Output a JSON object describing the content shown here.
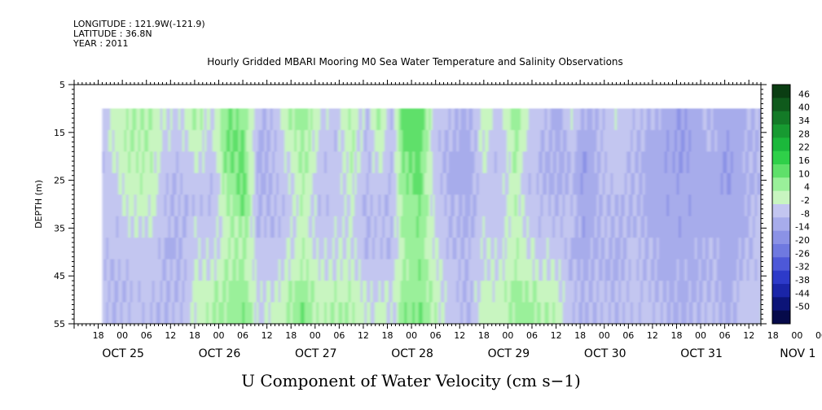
{
  "header": {
    "longitude": "LONGITUDE : 121.9W(-121.9)",
    "latitude": "LATITUDE : 36.8N",
    "year": "YEAR : 2011"
  },
  "chart_data": {
    "type": "heatmap",
    "title": "Hourly Gridded MBARI Mooring M0 Sea Water Temperature and Salinity Observations",
    "xlabel": "U Component of Water Velocity (cm s−1)",
    "ylabel": "DEPTH (m)",
    "ylim": [
      5,
      55
    ],
    "y_inverted": true,
    "yticks": [
      "5",
      "15",
      "25",
      "35",
      "45",
      "55"
    ],
    "x_start": "2011-10-25 12:00",
    "x_end": "2011-11-01 15:00",
    "x_hour_ticks": [
      "18",
      "00",
      "06",
      "12",
      "18",
      "00",
      "06",
      "12",
      "18",
      "00",
      "06",
      "12",
      "18",
      "00",
      "06",
      "12",
      "18",
      "00",
      "06",
      "12",
      "18",
      "00",
      "06",
      "12",
      "18",
      "00",
      "06",
      "12",
      "18",
      "00",
      "06",
      "12"
    ],
    "x_day_labels": [
      "OCT 25",
      "OCT 26",
      "OCT 27",
      "OCT 28",
      "OCT 29",
      "OCT 30",
      "OCT 31",
      "NOV  1"
    ],
    "data_depth_range": [
      10,
      55
    ],
    "data_time_range": [
      "2011-10-25 19:00",
      "2011-11-01 14:00"
    ],
    "colorbar": {
      "levels": [
        "46",
        "40",
        "34",
        "28",
        "22",
        "16",
        "10",
        "4",
        "-2",
        "-8",
        "-14",
        "-20",
        "-26",
        "-32",
        "-38",
        "-44",
        "-50"
      ],
      "colors": [
        "#0a3d12",
        "#0f5a1c",
        "#137a27",
        "#179a31",
        "#1bb83b",
        "#2fd049",
        "#5fe06a",
        "#9af09a",
        "#c8f5c0",
        "#c3c6f0",
        "#a7aceb",
        "#8b92e6",
        "#6f79e0",
        "#4d58d8",
        "#2d3ac9",
        "#1a25a8",
        "#0c1478",
        "#060a4a"
      ]
    },
    "columns": [
      {
        "t": 0,
        "v": [
          -6,
          -6,
          -6,
          -6,
          -6,
          -6,
          -6,
          -6,
          -6,
          -6
        ]
      },
      {
        "t": 8,
        "v": [
          2,
          2,
          0,
          -2,
          -4,
          -6,
          -6,
          -8,
          -8,
          -8
        ]
      },
      {
        "t": 16,
        "v": [
          4,
          4,
          3,
          2,
          0,
          -2,
          -4,
          -6,
          -6,
          -6
        ]
      },
      {
        "t": 24,
        "v": [
          4,
          3,
          2,
          2,
          0,
          -2,
          -4,
          -4,
          -6,
          -6
        ]
      },
      {
        "t": 32,
        "v": [
          -4,
          -4,
          -6,
          -8,
          -8,
          -8,
          -10,
          -8,
          -8,
          -8
        ]
      },
      {
        "t": 40,
        "v": [
          -2,
          -4,
          -6,
          -6,
          -8,
          -8,
          -8,
          -8,
          -8,
          -6
        ]
      },
      {
        "t": 46,
        "v": [
          6,
          4,
          -2,
          -4,
          -6,
          -4,
          -4,
          -2,
          0,
          0
        ]
      },
      {
        "t": 54,
        "v": [
          -4,
          -6,
          -6,
          -8,
          -6,
          -6,
          -4,
          -2,
          2,
          4
        ]
      },
      {
        "t": 62,
        "v": [
          10,
          12,
          10,
          6,
          4,
          2,
          2,
          4,
          6,
          6
        ]
      },
      {
        "t": 70,
        "v": [
          8,
          10,
          12,
          12,
          10,
          6,
          6,
          6,
          8,
          10
        ]
      },
      {
        "t": 78,
        "v": [
          -8,
          -10,
          -10,
          -10,
          -8,
          -8,
          -6,
          -6,
          -4,
          -4
        ]
      },
      {
        "t": 86,
        "v": [
          -6,
          -8,
          -8,
          -8,
          -8,
          -8,
          -6,
          -4,
          -2,
          0
        ]
      },
      {
        "t": 94,
        "v": [
          4,
          2,
          0,
          -2,
          -4,
          -4,
          -2,
          0,
          4,
          6
        ]
      },
      {
        "t": 100,
        "v": [
          8,
          6,
          6,
          4,
          4,
          2,
          2,
          4,
          8,
          10
        ]
      },
      {
        "t": 108,
        "v": [
          -2,
          -4,
          -6,
          -6,
          -6,
          -6,
          -4,
          -2,
          0,
          2
        ]
      },
      {
        "t": 116,
        "v": [
          -6,
          -6,
          -6,
          -6,
          -6,
          -4,
          -4,
          -2,
          2,
          4
        ]
      },
      {
        "t": 124,
        "v": [
          4,
          4,
          2,
          0,
          -2,
          -2,
          -2,
          0,
          2,
          4
        ]
      },
      {
        "t": 132,
        "v": [
          -6,
          -8,
          -8,
          -8,
          -8,
          -8,
          -8,
          -6,
          -4,
          -2
        ]
      },
      {
        "t": 138,
        "v": [
          6,
          4,
          0,
          -4,
          -6,
          -6,
          -6,
          -4,
          -2,
          0
        ]
      },
      {
        "t": 144,
        "v": [
          -8,
          -8,
          -8,
          -8,
          -8,
          -8,
          -8,
          -6,
          -4,
          -4
        ]
      },
      {
        "t": 150,
        "v": [
          12,
          12,
          10,
          8,
          6,
          6,
          4,
          4,
          6,
          8
        ]
      },
      {
        "t": 158,
        "v": [
          14,
          14,
          12,
          12,
          10,
          10,
          8,
          8,
          8,
          10
        ]
      },
      {
        "t": 166,
        "v": [
          -4,
          -6,
          -6,
          -6,
          -4,
          -4,
          -2,
          0,
          2,
          2
        ]
      },
      {
        "t": 174,
        "v": [
          -8,
          -8,
          -10,
          -10,
          -8,
          -8,
          -8,
          -6,
          -6,
          -6
        ]
      },
      {
        "t": 182,
        "v": [
          -10,
          -12,
          -12,
          -12,
          -10,
          -10,
          -8,
          -8,
          -8,
          -8
        ]
      },
      {
        "t": 190,
        "v": [
          2,
          0,
          -2,
          -4,
          -4,
          -4,
          -2,
          -2,
          0,
          2
        ]
      },
      {
        "t": 198,
        "v": [
          -6,
          -6,
          -8,
          -6,
          -6,
          -6,
          -4,
          -2,
          0,
          0
        ]
      },
      {
        "t": 206,
        "v": [
          8,
          6,
          4,
          2,
          2,
          2,
          4,
          4,
          6,
          6
        ]
      },
      {
        "t": 212,
        "v": [
          -2,
          -4,
          -4,
          -6,
          -6,
          -4,
          -2,
          0,
          4,
          6
        ]
      },
      {
        "t": 218,
        "v": [
          -6,
          -6,
          -8,
          -8,
          -6,
          -6,
          -4,
          -2,
          2,
          4
        ]
      },
      {
        "t": 226,
        "v": [
          -10,
          -10,
          -10,
          -10,
          -8,
          -6,
          -4,
          -2,
          0,
          2
        ]
      },
      {
        "t": 234,
        "v": [
          -4,
          -6,
          -8,
          -8,
          -6,
          -6,
          -8,
          -8,
          -6,
          -6
        ]
      },
      {
        "t": 240,
        "v": [
          -10,
          -12,
          -14,
          -14,
          -12,
          -12,
          -12,
          -10,
          -10,
          -10
        ]
      },
      {
        "t": 248,
        "v": [
          -8,
          -8,
          -8,
          -8,
          -8,
          -8,
          -8,
          -8,
          -6,
          -6
        ]
      },
      {
        "t": 256,
        "v": [
          -4,
          -4,
          -4,
          -6,
          -8,
          -8,
          -10,
          -10,
          -8,
          -8
        ]
      },
      {
        "t": 264,
        "v": [
          -6,
          -6,
          -8,
          -8,
          -8,
          -8,
          -6,
          -6,
          -6,
          -6
        ]
      },
      {
        "t": 272,
        "v": [
          -8,
          -10,
          -10,
          -10,
          -10,
          -10,
          -8,
          -8,
          -6,
          -6
        ]
      },
      {
        "t": 280,
        "v": [
          -10,
          -12,
          -12,
          -12,
          -12,
          -12,
          -10,
          -10,
          -8,
          -8
        ]
      },
      {
        "t": 288,
        "v": [
          -14,
          -14,
          -14,
          -12,
          -12,
          -12,
          -12,
          -10,
          -10,
          -10
        ]
      },
      {
        "t": 296,
        "v": [
          -10,
          -12,
          -12,
          -12,
          -12,
          -12,
          -10,
          -10,
          -10,
          -8
        ]
      },
      {
        "t": 304,
        "v": [
          -8,
          -8,
          -10,
          -10,
          -10,
          -10,
          -8,
          -8,
          -8,
          -6
        ]
      },
      {
        "t": 312,
        "v": [
          -12,
          -12,
          -14,
          -14,
          -12,
          -12,
          -12,
          -12,
          -10,
          -10
        ]
      },
      {
        "t": 320,
        "v": [
          -10,
          -10,
          -10,
          -10,
          -10,
          -10,
          -8,
          -8,
          -6,
          -6
        ]
      },
      {
        "t": 327,
        "v": [
          -8,
          -8,
          -8,
          -8,
          -6,
          -6,
          -6,
          -6,
          -4,
          -4
        ]
      }
    ],
    "legend": "right"
  }
}
